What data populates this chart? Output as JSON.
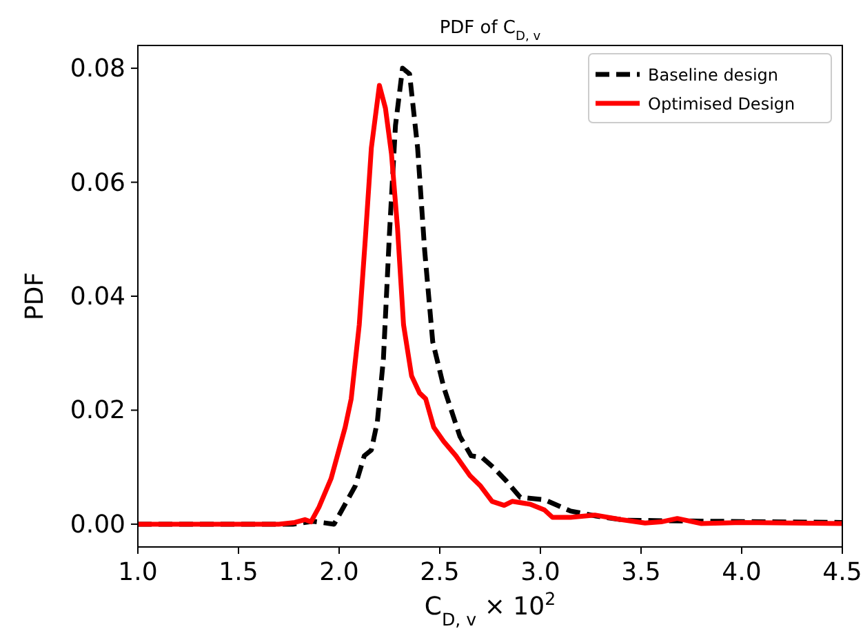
{
  "chart_data": {
    "type": "line",
    "title": "PDF of C$_{D, v}$",
    "xlabel": "C$_{D, v}$ × 10$^{2}$",
    "ylabel": "PDF",
    "xlim": [
      1.0,
      4.5
    ],
    "xticks": [
      {
        "value": 1.0,
        "label": "1.0"
      },
      1.5,
      {
        "value": 2.0,
        "label": "2.0"
      },
      2.5,
      {
        "value": 3.0,
        "label": "3.0"
      },
      3.5,
      {
        "value": 4.0,
        "label": "4.0"
      },
      4.5
    ],
    "ylim": [
      -0.004,
      0.084
    ],
    "yticks": [
      {
        "value": 0,
        "label": "0.00"
      },
      {
        "value": 0.02,
        "label": "0.02"
      },
      {
        "value": 0.04,
        "label": "0.04"
      },
      {
        "value": 0.06,
        "label": "0.06"
      },
      {
        "value": 0.08,
        "label": "0.08"
      }
    ],
    "legend": "top right",
    "grid": false,
    "series": [
      {
        "name": "Baseline design",
        "color": "#000000",
        "line_style": "dashed",
        "x": [
          1.0,
          1.5,
          1.77,
          1.87,
          1.975,
          2.08,
          2.125,
          2.16,
          2.19,
          2.22,
          2.25,
          2.28,
          2.315,
          2.35,
          2.39,
          2.425,
          2.465,
          2.52,
          2.6,
          2.656,
          2.71,
          2.765,
          2.83,
          2.9,
          3.02,
          3.15,
          3.28,
          3.42,
          3.61,
          3.88,
          4.5
        ],
        "values": [
          0,
          0,
          0,
          0.0005,
          0,
          0.0067,
          0.012,
          0.013,
          0.018,
          0.029,
          0.051,
          0.07,
          0.08,
          0.079,
          0.066,
          0.048,
          0.032,
          0.024,
          0.0154,
          0.012,
          0.0117,
          0.01,
          0.0076,
          0.0047,
          0.0043,
          0.0023,
          0.0014,
          0.0007,
          0.0006,
          0.0005,
          0.0003
        ]
      },
      {
        "name": "Optimised Design",
        "color": "#ff0000",
        "line_style": "solid",
        "x": [
          1.0,
          1.5,
          1.7,
          1.78,
          1.83,
          1.86,
          1.9,
          1.96,
          2.03,
          2.06,
          2.1,
          2.13,
          2.16,
          2.2,
          2.23,
          2.26,
          2.29,
          2.32,
          2.36,
          2.4,
          2.43,
          2.47,
          2.52,
          2.58,
          2.65,
          2.7,
          2.76,
          2.82,
          2.86,
          2.95,
          3.02,
          3.06,
          3.15,
          3.27,
          3.4,
          3.52,
          3.6,
          3.68,
          3.8,
          4.0,
          4.5
        ],
        "values": [
          0,
          0,
          0,
          0.0003,
          0.0008,
          0.0004,
          0.003,
          0.008,
          0.017,
          0.022,
          0.035,
          0.05,
          0.066,
          0.077,
          0.073,
          0.065,
          0.052,
          0.035,
          0.026,
          0.023,
          0.022,
          0.017,
          0.0145,
          0.012,
          0.0085,
          0.0068,
          0.004,
          0.0033,
          0.004,
          0.0035,
          0.0025,
          0.0012,
          0.0012,
          0.0016,
          0.0008,
          0.0002,
          0.0004,
          0.001,
          0.0001,
          0.0003,
          0.0001
        ]
      }
    ]
  }
}
